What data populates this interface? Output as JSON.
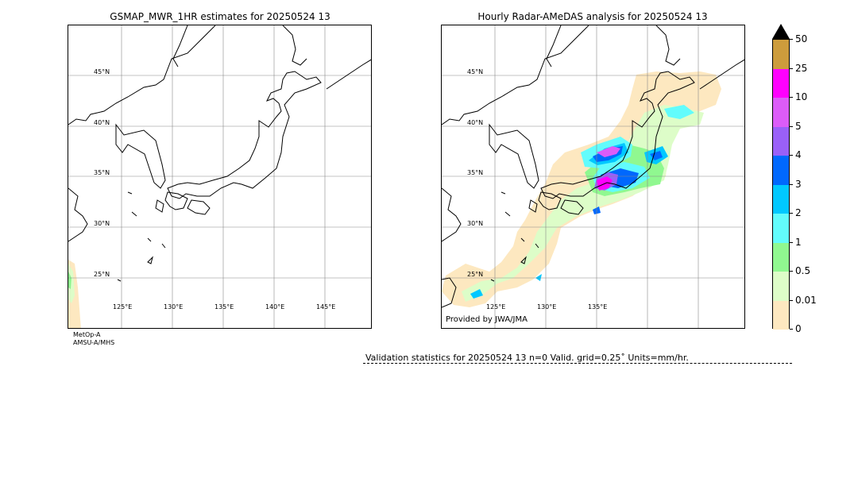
{
  "left_map": {
    "title": "GSMAP_MWR_1HR estimates for 20250524 13",
    "lat_labels": [
      "45°N",
      "40°N",
      "35°N",
      "30°N",
      "25°N"
    ],
    "lon_labels": [
      "125°E",
      "130°E",
      "135°E",
      "140°E",
      "145°E"
    ],
    "satellite_line1": "MetOp-A",
    "satellite_line2": "AMSU-A/MHS"
  },
  "right_map": {
    "title": "Hourly Radar-AMeDAS analysis for 20250524 13",
    "lat_labels": [
      "45°N",
      "40°N",
      "35°N",
      "30°N",
      "25°N"
    ],
    "lon_labels": [
      "125°E",
      "130°E",
      "135°E"
    ],
    "provider": "Provided by JWA/JMA"
  },
  "colorbar": {
    "ticks": [
      "0",
      "0.01",
      "0.5",
      "1",
      "2",
      "3",
      "4",
      "5",
      "10",
      "25",
      "50"
    ],
    "colors": [
      "#fde8c0",
      "#ddfdc8",
      "#90f890",
      "#62fcfc",
      "#00c8ff",
      "#0068fd",
      "#9a60f8",
      "#dc5cf8",
      "#ff00fe",
      "#cd9c3c"
    ],
    "extend_color": "#000000"
  },
  "validation": {
    "text": "Validation statistics for 20250524 13  n=0 Valid. grid=0.25˚ Units=mm/hr."
  }
}
